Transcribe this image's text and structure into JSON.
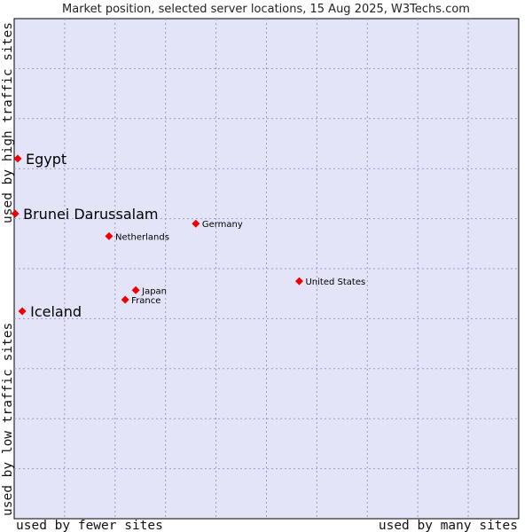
{
  "chart_data": {
    "type": "scatter",
    "title": "Market position, selected server locations, 15 Aug 2025, W3Techs.com",
    "xlabel_left": "used by fewer sites",
    "xlabel_right": "used by many sites",
    "ylabel_top": "used by high traffic sites",
    "ylabel_bottom": "used by low traffic sites",
    "xlim": [
      0,
      10
    ],
    "ylim": [
      0,
      10
    ],
    "grid": true,
    "colors": {
      "plot_bg": "#e4e4f8",
      "marker": "#ee0000",
      "grid": "#9a9ac8",
      "border": "#000000"
    },
    "points": [
      {
        "label": "Egypt",
        "x": 0.07,
        "y": 7.2,
        "emphasis": true
      },
      {
        "label": "Brunei Darussalam",
        "x": 0.02,
        "y": 6.1,
        "emphasis": true
      },
      {
        "label": "Iceland",
        "x": 0.16,
        "y": 4.15,
        "emphasis": true
      },
      {
        "label": "Germany",
        "x": 3.6,
        "y": 5.9,
        "emphasis": false
      },
      {
        "label": "Netherlands",
        "x": 1.88,
        "y": 5.65,
        "emphasis": false
      },
      {
        "label": "United States",
        "x": 5.65,
        "y": 4.75,
        "emphasis": false
      },
      {
        "label": "Japan",
        "x": 2.41,
        "y": 4.57,
        "emphasis": false
      },
      {
        "label": "France",
        "x": 2.2,
        "y": 4.38,
        "emphasis": false
      }
    ]
  }
}
